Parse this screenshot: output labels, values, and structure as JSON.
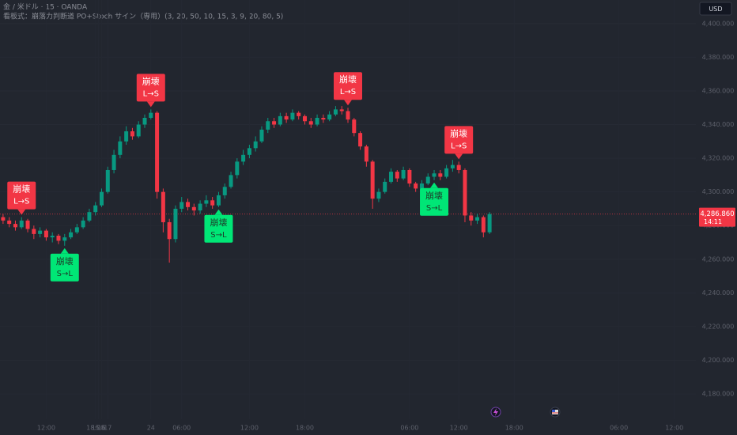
{
  "chart_data": {
    "type": "candlestick",
    "title": "金 / 米ドル · 15 · OANDA",
    "subtitle": "看板式：崩落力判断道 PO+Stoch サイン（専用）(3, 20, 50, 10, 15, 3, 9, 20, 80, 5)",
    "currency": "USD",
    "x": [
      0,
      1,
      2,
      3,
      4,
      5,
      6,
      7,
      8,
      9,
      10,
      11,
      12,
      13,
      14,
      15,
      16,
      17,
      18,
      19,
      20,
      21,
      22,
      23,
      24,
      25,
      26,
      27,
      28,
      29,
      30,
      31,
      32,
      33,
      34,
      35,
      36,
      37,
      38,
      39,
      40,
      41,
      42,
      43,
      44,
      45,
      46,
      47,
      48,
      49,
      50,
      51,
      52,
      53,
      54,
      55,
      56,
      57,
      58,
      59,
      60,
      61,
      62,
      63,
      64,
      65,
      66,
      67,
      68,
      69,
      70,
      71,
      72,
      73,
      74,
      75,
      76,
      77,
      78,
      79
    ],
    "open": [
      4285,
      4283,
      4281,
      4279,
      4283,
      4278,
      4275,
      4277,
      4273,
      4274,
      4271,
      4273,
      4276,
      4279,
      4283,
      4288,
      4292,
      4300,
      4313,
      4322,
      4330,
      4336,
      4333,
      4340,
      4344,
      4347,
      4300,
      4282,
      4272,
      4290,
      4294,
      4291,
      4289,
      4293,
      4295,
      4292,
      4298,
      4303,
      4310,
      4318,
      4322,
      4326,
      4330,
      4337,
      4342,
      4340,
      4345,
      4343,
      4347,
      4345,
      4342,
      4340,
      4344,
      4343,
      4346,
      4349,
      4348,
      4343,
      4335,
      4327,
      4318,
      4296,
      4300,
      4306,
      4312,
      4308,
      4313,
      4305,
      4302,
      4305,
      4309,
      4311,
      4309,
      4314,
      4316,
      4313,
      4286,
      4283,
      4285,
      4276
    ],
    "high": [
      4287,
      4285,
      4283,
      4285,
      4284,
      4280,
      4279,
      4278,
      4276,
      4275,
      4275,
      4278,
      4281,
      4285,
      4290,
      4294,
      4302,
      4315,
      4325,
      4333,
      4339,
      4338,
      4342,
      4346,
      4349,
      4348,
      4302,
      4284,
      4292,
      4297,
      4296,
      4293,
      4295,
      4298,
      4297,
      4300,
      4305,
      4312,
      4320,
      4325,
      4328,
      4333,
      4339,
      4344,
      4344,
      4347,
      4347,
      4349,
      4348,
      4346,
      4344,
      4346,
      4346,
      4348,
      4351,
      4351,
      4350,
      4344,
      4336,
      4328,
      4319,
      4302,
      4308,
      4314,
      4313,
      4315,
      4314,
      4306,
      4307,
      4311,
      4313,
      4313,
      4316,
      4319,
      4318,
      4314,
      4288,
      4287,
      4286,
      4288
    ],
    "low": [
      4281,
      4279,
      4277,
      4278,
      4276,
      4272,
      4273,
      4271,
      4270,
      4269,
      4268,
      4272,
      4275,
      4278,
      4282,
      4286,
      4291,
      4299,
      4311,
      4320,
      4328,
      4331,
      4332,
      4338,
      4343,
      4296,
      4276,
      4258,
      4270,
      4288,
      4289,
      4286,
      4287,
      4291,
      4290,
      4291,
      4296,
      4302,
      4308,
      4316,
      4320,
      4324,
      4329,
      4335,
      4338,
      4339,
      4341,
      4342,
      4343,
      4340,
      4338,
      4339,
      4341,
      4342,
      4345,
      4346,
      4341,
      4333,
      4325,
      4315,
      4290,
      4294,
      4299,
      4305,
      4306,
      4307,
      4303,
      4300,
      4301,
      4304,
      4307,
      4307,
      4308,
      4312,
      4311,
      4282,
      4280,
      4281,
      4273,
      4275
    ],
    "close": [
      4283,
      4281,
      4279,
      4283,
      4278,
      4275,
      4277,
      4273,
      4274,
      4271,
      4273,
      4276,
      4279,
      4283,
      4288,
      4292,
      4300,
      4313,
      4322,
      4330,
      4336,
      4333,
      4340,
      4344,
      4347,
      4300,
      4282,
      4272,
      4290,
      4294,
      4291,
      4289,
      4293,
      4295,
      4292,
      4298,
      4303,
      4310,
      4318,
      4322,
      4326,
      4330,
      4337,
      4342,
      4340,
      4345,
      4343,
      4347,
      4345,
      4342,
      4340,
      4344,
      4343,
      4346,
      4349,
      4348,
      4343,
      4335,
      4327,
      4318,
      4296,
      4300,
      4306,
      4312,
      4308,
      4313,
      4305,
      4302,
      4305,
      4309,
      4311,
      4309,
      4314,
      4316,
      4313,
      4286,
      4283,
      4285,
      4276,
      4286.86
    ],
    "up_color": "#089981",
    "down_color": "#f23645",
    "xlim": [
      -0.5,
      112.5
    ],
    "xticks": [
      {
        "value": 7,
        "label": "12:00"
      },
      {
        "value": 15,
        "label": "18:00"
      },
      24,
      {
        "value": 29,
        "label": "06:00"
      },
      15.5,
      {
        "value": 40,
        "label": "12:00"
      },
      {
        "value": 49,
        "label": "18:00"
      },
      16,
      {
        "value": 66,
        "label": "06:00"
      },
      {
        "value": 74,
        "label": "12:00"
      },
      {
        "value": 83,
        "label": "18:00"
      },
      17,
      {
        "value": 100,
        "label": "06:00"
      },
      {
        "value": 109,
        "label": "12:00"
      }
    ],
    "ylim": [
      4165,
      4414
    ],
    "yticks": [
      {
        "value": 4180,
        "label": "4,180.000"
      },
      {
        "value": 4200,
        "label": "4,200.000"
      },
      {
        "value": 4220,
        "label": "4,220.000"
      },
      {
        "value": 4240,
        "label": "4,240.000"
      },
      {
        "value": 4260,
        "label": "4,260.000"
      },
      {
        "value": 4280,
        "label": "4,280.000"
      },
      {
        "value": 4300,
        "label": "4,300.000"
      },
      {
        "value": 4320,
        "label": "4,320.000"
      },
      {
        "value": 4340,
        "label": "4,340.000"
      },
      {
        "value": 4360,
        "label": "4,360.000"
      },
      {
        "value": 4380,
        "label": "4,380.000"
      },
      {
        "value": 4400,
        "label": "4,400.000"
      }
    ],
    "last_price": {
      "value": 4286.86,
      "label": "4,286.860",
      "countdown": "14:11",
      "color": "#f23645"
    },
    "signals": [
      {
        "index": 3,
        "position": "above",
        "title": "崩壊",
        "label": "L→S",
        "color": "#f23645"
      },
      {
        "index": 10,
        "position": "below",
        "title": "崩壊",
        "label": "S→L",
        "color": "#00e676"
      },
      {
        "index": 24,
        "position": "above",
        "title": "崩壊",
        "label": "L→S",
        "color": "#f23645"
      },
      {
        "index": 35,
        "position": "below",
        "title": "崩壊",
        "label": "S→L",
        "color": "#00e676"
      },
      {
        "index": 56,
        "position": "above",
        "title": "崩壊",
        "label": "L→S",
        "color": "#f23645"
      },
      {
        "index": 70,
        "position": "below",
        "title": "崩壊",
        "label": "S→L",
        "color": "#00e676"
      },
      {
        "index": 74,
        "position": "above",
        "title": "崩壊",
        "label": "L→S",
        "color": "#f23645"
      }
    ]
  }
}
